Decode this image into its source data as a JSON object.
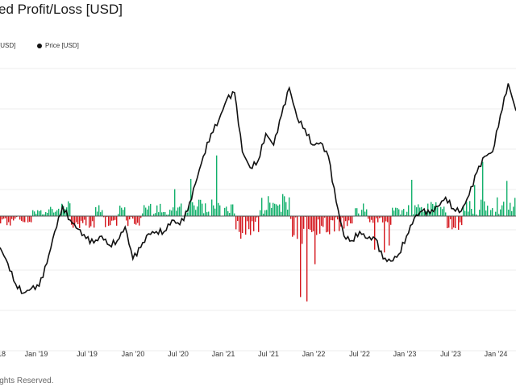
{
  "title": "ed Profit/Loss [USD]",
  "legend": {
    "series_a": "[USD]",
    "series_b": "Price [USD]"
  },
  "footer": "ights Reserved.",
  "chart_data": {
    "type": "line",
    "title": "ed Profit/Loss [USD]",
    "grid": true,
    "legend_position": "top-left",
    "x_tick_labels": [
      "18",
      "Jan '19",
      "Jul '19",
      "Jan '20",
      "Jul '20",
      "Jan '21",
      "Jul '21",
      "Jan '22",
      "Jul '22",
      "Jan '23",
      "Jul '23",
      "Jan '24"
    ],
    "series": [
      {
        "name": "Price [USD]",
        "color": "#111111",
        "x": [
          "2018-10",
          "2018-11",
          "2018-12",
          "2019-01",
          "2019-02",
          "2019-03",
          "2019-04",
          "2019-05",
          "2019-06",
          "2019-07",
          "2019-08",
          "2019-09",
          "2019-10",
          "2019-11",
          "2019-12",
          "2020-01",
          "2020-02",
          "2020-03",
          "2020-04",
          "2020-05",
          "2020-06",
          "2020-07",
          "2020-08",
          "2020-09",
          "2020-10",
          "2020-11",
          "2020-12",
          "2021-01",
          "2021-02",
          "2021-03",
          "2021-04",
          "2021-05",
          "2021-06",
          "2021-07",
          "2021-08",
          "2021-09",
          "2021-10",
          "2021-11",
          "2021-12",
          "2022-01",
          "2022-02",
          "2022-03",
          "2022-04",
          "2022-05",
          "2022-06",
          "2022-07",
          "2022-08",
          "2022-09",
          "2022-10",
          "2022-11",
          "2022-12",
          "2023-01",
          "2023-02",
          "2023-03",
          "2023-04",
          "2023-05",
          "2023-06",
          "2023-07",
          "2023-08",
          "2023-09",
          "2023-10",
          "2023-11",
          "2023-12",
          "2024-01",
          "2024-02",
          "2024-03",
          "2024-04"
        ],
        "y": [
          0.4,
          0.33,
          0.24,
          0.2,
          0.22,
          0.23,
          0.33,
          0.47,
          0.58,
          0.52,
          0.48,
          0.44,
          0.42,
          0.45,
          0.41,
          0.43,
          0.49,
          0.35,
          0.4,
          0.46,
          0.47,
          0.47,
          0.52,
          0.5,
          0.56,
          0.68,
          0.8,
          0.9,
          0.96,
          1.05,
          1.08,
          0.82,
          0.75,
          0.78,
          0.9,
          0.85,
          0.98,
          1.1,
          0.97,
          0.92,
          0.85,
          0.86,
          0.8,
          0.6,
          0.45,
          0.43,
          0.47,
          0.44,
          0.44,
          0.35,
          0.34,
          0.37,
          0.45,
          0.53,
          0.56,
          0.55,
          0.58,
          0.62,
          0.57,
          0.56,
          0.63,
          0.73,
          0.8,
          0.82,
          0.98,
          1.12,
          1.0
        ]
      }
    ]
  }
}
